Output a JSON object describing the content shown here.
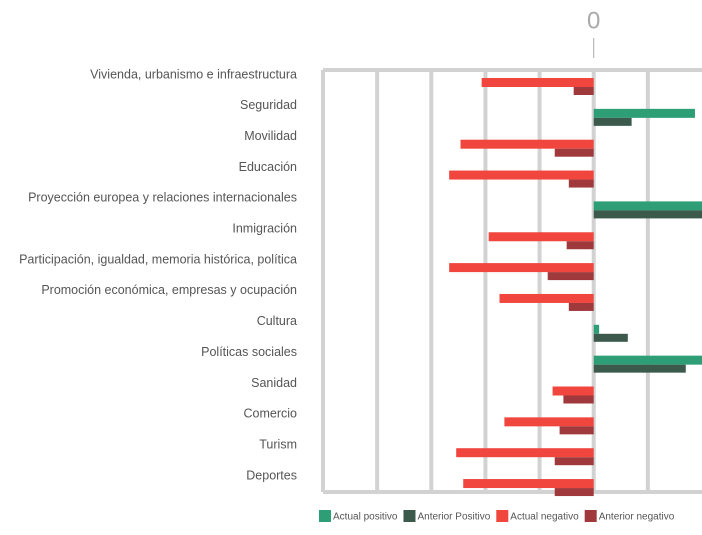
{
  "chart_data": {
    "type": "diverging-bar",
    "categories": [
      "Vivienda, urbanismo e infraestructura",
      "Seguridad",
      "Movilidad",
      "Educación",
      "Proyección europea y relaciones internacionales",
      "Inmigración",
      "Participación, igualdad, memoria histórica, política",
      "Promoción económica, empresas y ocupación",
      "Cultura",
      "Políticas sociales",
      "Sanidad",
      "Comercio",
      "Turism",
      "Deportes"
    ],
    "series": [
      {
        "name": "Actual positivo",
        "color": "#2e9e77",
        "values": [
          null,
          1.87,
          null,
          null,
          2.0,
          null,
          null,
          null,
          0.1,
          2.0,
          null,
          null,
          null,
          null
        ]
      },
      {
        "name": "Anterior Positivo",
        "color": "#3b5a4b",
        "values": [
          null,
          0.7,
          null,
          null,
          2.0,
          null,
          null,
          null,
          0.63,
          1.7,
          null,
          null,
          null,
          null
        ]
      },
      {
        "name": "Actual negativo",
        "color": "#f0463e",
        "values": [
          -2.07,
          null,
          -2.46,
          -2.67,
          null,
          -1.94,
          -2.67,
          -1.74,
          null,
          null,
          -0.76,
          -1.65,
          -2.54,
          -2.41
        ]
      },
      {
        "name": "Anterior negativo",
        "color": "#a0393c",
        "values": [
          -0.37,
          null,
          -0.72,
          -0.46,
          null,
          -0.5,
          -0.85,
          -0.46,
          null,
          null,
          -0.56,
          -0.63,
          -0.72,
          -0.72
        ]
      }
    ],
    "xlim": [
      -5,
      2
    ],
    "xticks": [
      0
    ],
    "xgrid": [
      -4,
      -3,
      -2,
      -1,
      1
    ],
    "grid": true
  }
}
